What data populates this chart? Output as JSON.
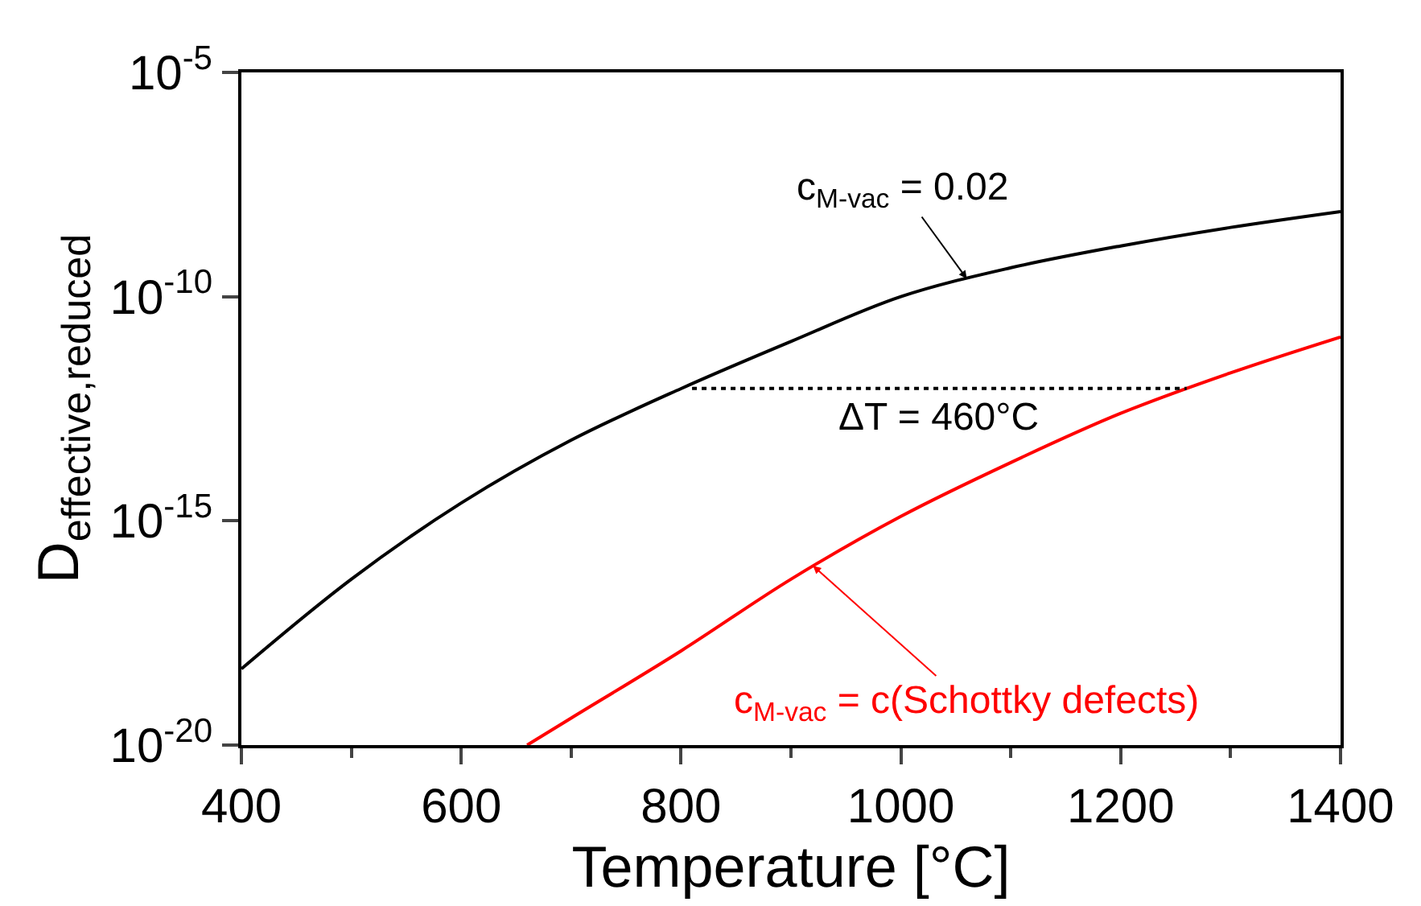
{
  "chart_data": {
    "type": "line",
    "xlabel": "Temperature [°C]",
    "ylabel": "D$_{effective,reduced}$",
    "log": "y",
    "marker": "none",
    "xlim": [
      400,
      1400
    ],
    "xticks": [
      400,
      600,
      800,
      1000,
      1200,
      1400
    ],
    "ylim": [
      1e-20,
      1e-05
    ],
    "yticks": [
      {
        "value": 1e-20,
        "label": "10$^{-20}$"
      },
      {
        "value": 1e-15,
        "label": "10$^{-15}$"
      },
      {
        "value": 1e-10,
        "label": "10$^{-10}$"
      },
      {
        "value": 1e-05,
        "label": "10$^{-5}$"
      }
    ],
    "series": [
      {
        "color": "#000000",
        "line_style": "solid",
        "x": [
          400,
          500,
          600,
          700,
          800,
          900,
          1000,
          1100,
          1200,
          1300,
          1400
        ],
        "values": [
          5e-19,
          5e-17,
          2.5e-15,
          6.3e-14,
          8.9e-13,
          1e-11,
          1e-10,
          4.4e-10,
          1.35e-09,
          3.5e-09,
          7.9e-09
        ]
      },
      {
        "color": "#ff0000",
        "line_style": "solid",
        "x": [
          660,
          700,
          800,
          900,
          1000,
          1100,
          1200,
          1300,
          1400
        ],
        "values": [
          1e-20,
          4e-20,
          1.26e-18,
          5e-17,
          1.26e-15,
          2e-14,
          2.5e-13,
          2e-12,
          1.26e-11
        ]
      },
      {
        "color": "#000000",
        "line_style": "dotted",
        "x": [
          810,
          1260
        ],
        "values": [
          9e-13,
          9e-13
        ]
      }
    ],
    "annotations": [
      {
        "text": "c$_{M-vac}$ = 0.02",
        "x": 1060,
        "y": 2.5e-10
      },
      {
        "text": "ΔT = 460°C",
        "x": 1035,
        "y": 9e-13
      },
      {
        "text": "c$_{M-vac}$ = c(Schottky defects)",
        "x": 920,
        "y": 1e-16
      }
    ]
  }
}
